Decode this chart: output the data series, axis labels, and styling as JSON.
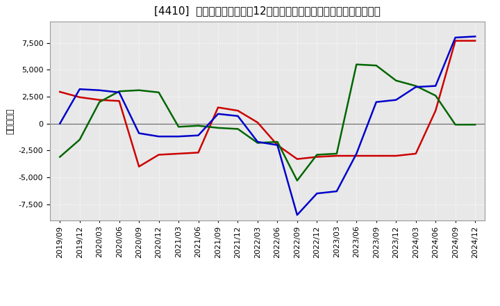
{
  "title": "[4410]  キャッシュフローの12か月移動合計の対前年同期増減額の推移",
  "ylabel": "（百万円）",
  "background_color": "#ffffff",
  "plot_bg_color": "#e8e8e8",
  "grid_color": "#ffffff",
  "x_labels": [
    "2019/09",
    "2019/12",
    "2020/03",
    "2020/06",
    "2020/09",
    "2020/12",
    "2021/03",
    "2021/06",
    "2021/09",
    "2021/12",
    "2022/03",
    "2022/06",
    "2022/09",
    "2022/12",
    "2023/03",
    "2023/06",
    "2023/09",
    "2023/12",
    "2024/03",
    "2024/06",
    "2024/09",
    "2024/12"
  ],
  "operating_cf": [
    2950,
    2450,
    2200,
    2100,
    -4000,
    -2900,
    -2800,
    -2700,
    1500,
    1200,
    100,
    -2000,
    -3300,
    -3100,
    -3000,
    -3000,
    -3000,
    -3000,
    -2800,
    1200,
    7700,
    7700
  ],
  "investing_cf": [
    -3100,
    -1500,
    2000,
    3000,
    3100,
    2900,
    -300,
    -200,
    -400,
    -500,
    -1800,
    -1700,
    -5300,
    -2900,
    -2800,
    5500,
    5400,
    4000,
    3500,
    2600,
    -100,
    -100
  ],
  "free_cf": [
    0,
    3200,
    3100,
    2900,
    -900,
    -1200,
    -1200,
    -1100,
    900,
    700,
    -1700,
    -2000,
    -8500,
    -6500,
    -6300,
    -2800,
    2000,
    2200,
    3400,
    3500,
    8000,
    8100
  ],
  "operating_cf_color": "#cc0000",
  "investing_cf_color": "#006600",
  "free_cf_color": "#0000cc",
  "ylim": [
    -9000,
    9500
  ],
  "yticks": [
    -7500,
    -5000,
    -2500,
    0,
    2500,
    5000,
    7500
  ],
  "title_fontsize": 11,
  "label_fontsize": 9,
  "tick_fontsize": 8,
  "line_width": 1.8
}
